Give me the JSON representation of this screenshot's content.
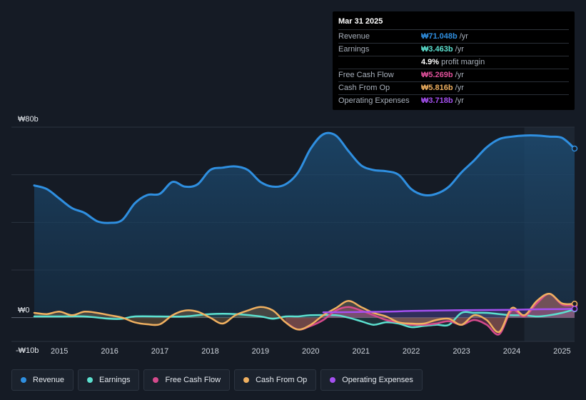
{
  "tooltip": {
    "date": "Mar 31 2025",
    "rows": [
      {
        "label": "Revenue",
        "value": "₩71.048b",
        "unit": "/yr",
        "color": "#2f8fe0"
      },
      {
        "label": "Earnings",
        "value": "₩3.463b",
        "unit": "/yr",
        "color": "#5ce0cf"
      },
      {
        "label": "",
        "value": "4.9%",
        "unit": "profit margin",
        "color": "#ffffff"
      },
      {
        "label": "Free Cash Flow",
        "value": "₩5.269b",
        "unit": "/yr",
        "color": "#e0509a"
      },
      {
        "label": "Cash From Op",
        "value": "₩5.816b",
        "unit": "/yr",
        "color": "#f0b060"
      },
      {
        "label": "Operating Expenses",
        "value": "₩3.718b",
        "unit": "/yr",
        "color": "#a550f0"
      }
    ]
  },
  "legend": [
    {
      "label": "Revenue",
      "color": "#2f8fe0"
    },
    {
      "label": "Earnings",
      "color": "#5ce0cf"
    },
    {
      "label": "Free Cash Flow",
      "color": "#d54a8c"
    },
    {
      "label": "Cash From Op",
      "color": "#f0b060"
    },
    {
      "label": "Operating Expenses",
      "color": "#a550f0"
    }
  ],
  "chart_data": {
    "type": "area",
    "ytick_labels": [
      "₩80b",
      "₩0",
      "-₩10b"
    ],
    "yticks": [
      80,
      0,
      -10
    ],
    "ylim": [
      -10,
      80
    ],
    "xticks": [
      "2015",
      "2016",
      "2017",
      "2018",
      "2019",
      "2020",
      "2021",
      "2022",
      "2023",
      "2024",
      "2025"
    ],
    "xlim": [
      2014.5,
      2025.25
    ],
    "highlight_start": 2024.25,
    "series": [
      {
        "name": "Revenue",
        "color": "#2f8fe0",
        "x": [
          2014.5,
          2014.75,
          2015.0,
          2015.25,
          2015.5,
          2015.75,
          2016.0,
          2016.25,
          2016.5,
          2016.75,
          2017.0,
          2017.25,
          2017.5,
          2017.75,
          2018.0,
          2018.25,
          2018.5,
          2018.75,
          2019.0,
          2019.25,
          2019.5,
          2019.75,
          2020.0,
          2020.25,
          2020.5,
          2020.75,
          2021.0,
          2021.25,
          2021.5,
          2021.75,
          2022.0,
          2022.25,
          2022.5,
          2022.75,
          2023.0,
          2023.25,
          2023.5,
          2023.75,
          2024.0,
          2024.25,
          2024.5,
          2024.75,
          2025.0,
          2025.25
        ],
        "y": [
          55.5,
          54,
          50,
          46,
          44,
          40.5,
          39.8,
          41,
          48,
          51.5,
          52,
          57,
          55,
          56,
          62,
          63,
          63.5,
          62,
          57,
          55,
          56,
          61,
          71,
          77,
          76.5,
          70,
          64,
          62,
          61.5,
          60,
          54,
          51.5,
          52,
          55,
          61,
          66,
          71.5,
          75,
          76,
          76.5,
          76.5,
          76,
          75.5,
          71
        ]
      },
      {
        "name": "Earnings",
        "color": "#5ce0cf",
        "x": [
          2014.5,
          2015.0,
          2015.5,
          2016.0,
          2016.25,
          2016.5,
          2017.0,
          2017.5,
          2018.0,
          2018.5,
          2019.0,
          2019.25,
          2019.5,
          2019.75,
          2020.0,
          2020.5,
          2020.75,
          2021.0,
          2021.25,
          2021.5,
          2021.75,
          2022.0,
          2022.25,
          2022.5,
          2022.75,
          2023.0,
          2023.25,
          2023.5,
          2023.75,
          2024.0,
          2024.25,
          2024.5,
          2024.75,
          2025.0,
          2025.25
        ],
        "y": [
          0.5,
          0.5,
          0.5,
          -0.5,
          -0.5,
          0.5,
          0.5,
          0.5,
          1.5,
          1.5,
          0.5,
          -0.5,
          0.5,
          0.5,
          1,
          1,
          0,
          -1.5,
          -3,
          -2,
          -2.5,
          -4,
          -3.5,
          -3,
          -3,
          2,
          2,
          2,
          1.5,
          1,
          1,
          0.5,
          1,
          2,
          3.5
        ]
      },
      {
        "name": "Free Cash Flow",
        "color": "#d54a8c",
        "x": [
          2019.5,
          2019.75,
          2020.0,
          2020.25,
          2020.5,
          2020.75,
          2021.0,
          2021.25,
          2021.5,
          2021.75,
          2022.0,
          2022.25,
          2022.5,
          2022.75,
          2023.0,
          2023.25,
          2023.5,
          2023.75,
          2024.0,
          2024.25,
          2024.5,
          2024.75,
          2025.0,
          2025.25
        ],
        "y": [
          -2,
          -5,
          -3.5,
          -1,
          3,
          4.5,
          3,
          1,
          -1,
          -2,
          -3,
          -3,
          -2.5,
          -1.5,
          -3,
          -1,
          -3,
          -7,
          3,
          0.5,
          6,
          10,
          5.5,
          5.27
        ]
      },
      {
        "name": "Cash From Op",
        "color": "#f0b060",
        "x": [
          2014.5,
          2014.75,
          2015.0,
          2015.25,
          2015.5,
          2015.75,
          2016.0,
          2016.25,
          2016.5,
          2016.75,
          2017.0,
          2017.25,
          2017.5,
          2017.75,
          2018.0,
          2018.25,
          2018.5,
          2018.75,
          2019.0,
          2019.25,
          2019.5,
          2019.75,
          2020.0,
          2020.25,
          2020.5,
          2020.75,
          2021.0,
          2021.25,
          2021.5,
          2021.75,
          2022.0,
          2022.25,
          2022.5,
          2022.75,
          2023.0,
          2023.25,
          2023.5,
          2023.75,
          2024.0,
          2024.25,
          2024.5,
          2024.75,
          2025.0,
          2025.25
        ],
        "y": [
          2,
          1.5,
          2.5,
          1,
          2.5,
          2,
          1,
          0,
          -2,
          -2.8,
          -2.8,
          1,
          3,
          2.5,
          0,
          -2.5,
          1,
          3,
          4.5,
          3,
          -2,
          -5,
          -3,
          1,
          4,
          7,
          4.5,
          2,
          0.5,
          -2,
          -2.5,
          -2.5,
          -1,
          -0.5,
          -3,
          1,
          -1,
          -6,
          4,
          1,
          7,
          10,
          6,
          5.82
        ]
      },
      {
        "name": "Operating Expenses",
        "color": "#a550f0",
        "x": [
          2020.25,
          2021.0,
          2021.5,
          2022.0,
          2022.5,
          2023.0,
          2023.5,
          2024.0,
          2024.5,
          2025.0,
          2025.25
        ],
        "y": [
          2.2,
          2.4,
          2.5,
          2.8,
          3.0,
          3.1,
          3.2,
          3.3,
          3.5,
          3.6,
          3.72
        ]
      }
    ]
  }
}
